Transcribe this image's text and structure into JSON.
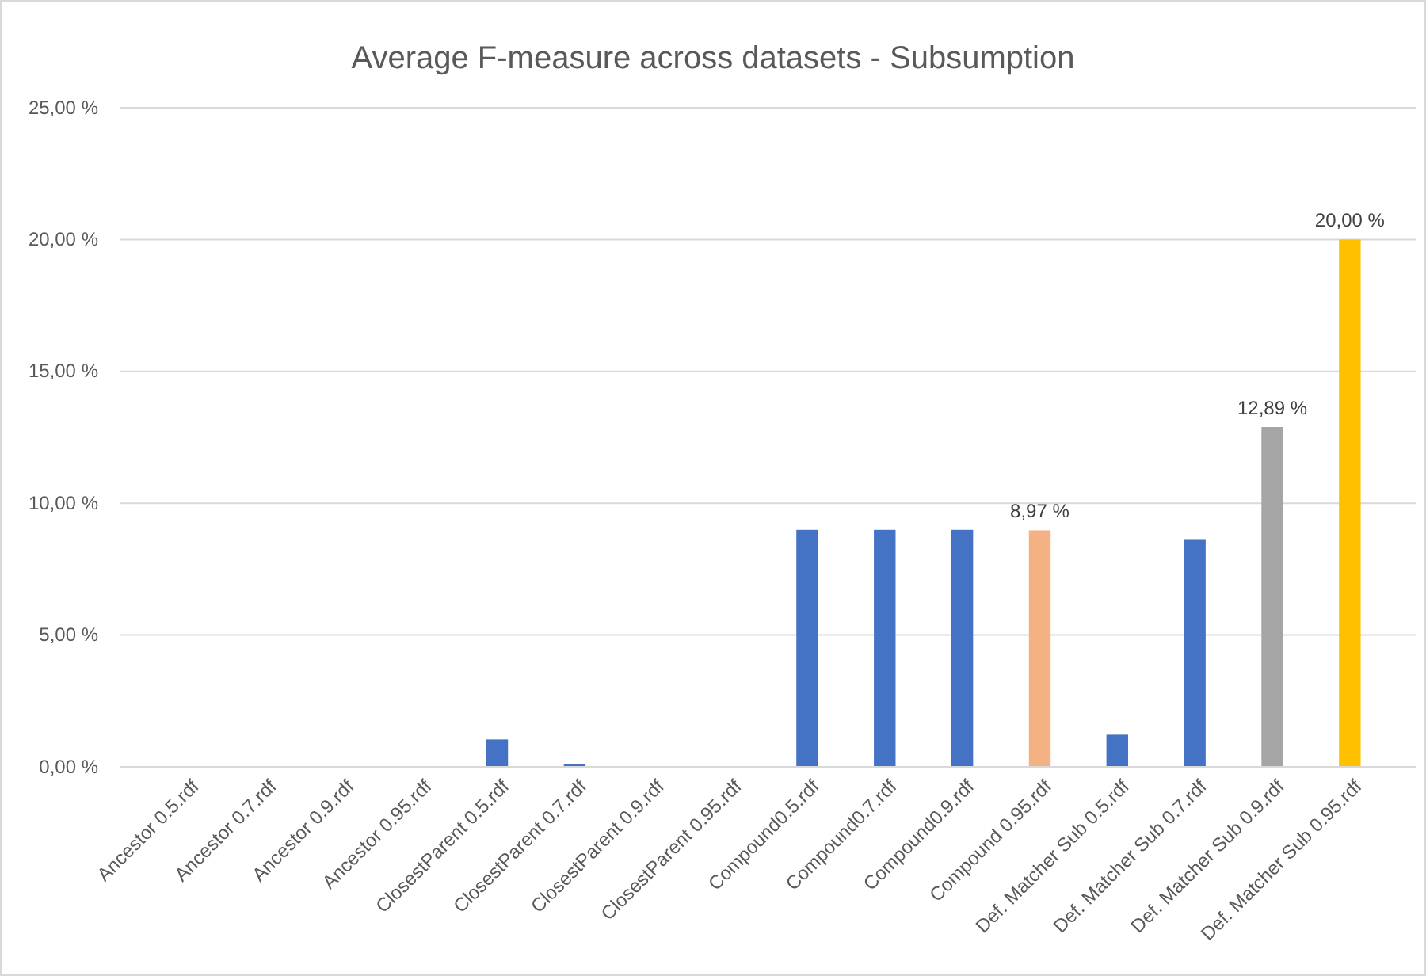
{
  "chart_data": {
    "type": "bar",
    "title": "Average F-measure across datasets - Subsumption",
    "categories": [
      "Ancestor 0.5.rdf",
      "Ancestor 0.7.rdf",
      "Ancestor 0.9.rdf",
      "Ancestor 0.95.rdf",
      "ClosestParent 0.5.rdf",
      "ClosestParent 0.7.rdf",
      "ClosestParent 0.9.rdf",
      "ClosestParent 0.95.rdf",
      "Compound0.5.rdf",
      "Compound0.7.rdf",
      "Compound0.9.rdf",
      "Compound 0.95.rdf",
      "Def. Matcher Sub 0.5.rdf",
      "Def. Matcher Sub 0.7.rdf",
      "Def. Matcher Sub 0.9.rdf",
      "Def. Matcher Sub 0.95.rdf"
    ],
    "values": [
      0,
      0,
      0,
      0,
      1.04,
      0.1,
      0,
      0,
      8.99,
      8.99,
      8.99,
      8.97,
      1.22,
      8.61,
      12.89,
      20
    ],
    "colors": [
      "#4472c4",
      "#4472c4",
      "#4472c4",
      "#4472c4",
      "#4472c4",
      "#4472c4",
      "#4472c4",
      "#4472c4",
      "#4472c4",
      "#4472c4",
      "#4472c4",
      "#f4b183",
      "#4472c4",
      "#4472c4",
      "#a5a5a5",
      "#ffc000"
    ],
    "value_labels": [
      null,
      null,
      null,
      null,
      null,
      null,
      null,
      null,
      null,
      null,
      null,
      "8,97 %",
      null,
      null,
      "12,89 %",
      "20,00 %"
    ],
    "ylim": [
      0,
      25
    ],
    "yticks": [
      {
        "value": 0,
        "label": "0,00 %"
      },
      {
        "value": 5,
        "label": "5,00 %"
      },
      {
        "value": 10,
        "label": "10,00 %"
      },
      {
        "value": 15,
        "label": "15,00 %"
      },
      {
        "value": 20,
        "label": "20,00 %"
      },
      {
        "value": 25,
        "label": "25,00 %"
      }
    ],
    "grid": "y"
  }
}
